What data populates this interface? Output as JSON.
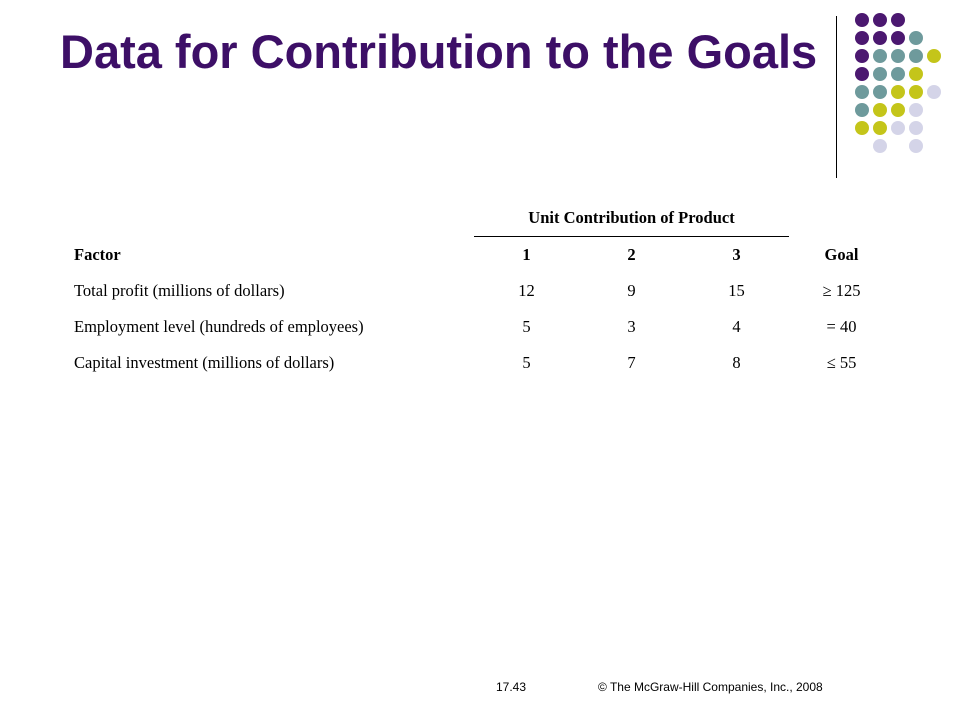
{
  "slide": {
    "title": "Data for Contribution to the Goals"
  },
  "table": {
    "group_header": "Unit Contribution of Product",
    "columns": [
      "Factor",
      "1",
      "2",
      "3",
      "Goal"
    ],
    "rows": [
      [
        "Total profit (millions of dollars)",
        "12",
        "9",
        "15",
        "≥ 125"
      ],
      [
        "Employment level (hundreds of employees)",
        "5",
        "3",
        "4",
        "= 40"
      ],
      [
        "Capital investment (millions of dollars)",
        "5",
        "7",
        "8",
        "≤ 55"
      ]
    ]
  },
  "footer": {
    "slide_number": "17.43",
    "copyright": "© The McGraw-Hill Companies, Inc., 2008"
  },
  "colors": {
    "title": "#3d0f67",
    "dot_purple": "#4b1870",
    "dot_teal": "#6e9a9c",
    "dot_olive": "#c4c51a",
    "dot_lavender": "#d4d4e8"
  }
}
